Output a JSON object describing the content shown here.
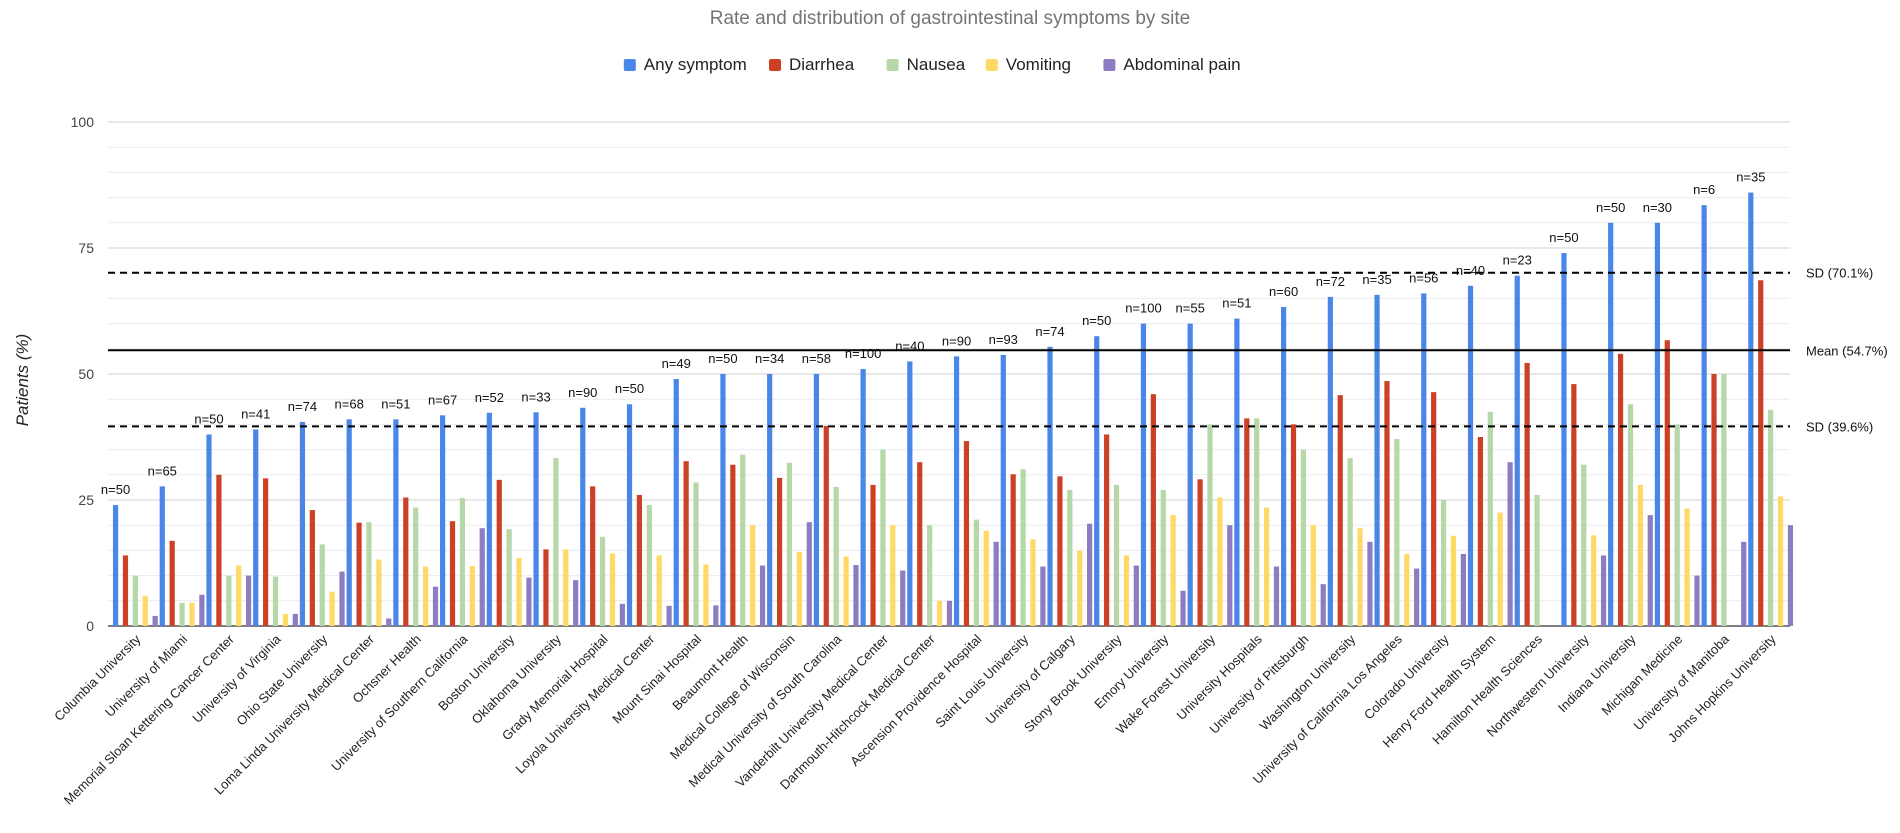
{
  "chart_data": {
    "type": "bar",
    "title": "Rate and distribution of gastrointestinal symptoms by site",
    "ylabel": "Patients (%)",
    "xlabel": "",
    "ylim": [
      0,
      100
    ],
    "yticks": [
      "0",
      "25",
      "50",
      "75",
      "100"
    ],
    "grid": true,
    "legend_position": "top",
    "categories": [
      "Columbia University",
      "University of Miami",
      "Memorial Sloan Kettering Cancer Center",
      "University of Virginia",
      "Ohio State University",
      "Loma Linda University Medical Center",
      "Ochsner Health",
      "University of Southern California",
      "Boston University",
      "Oklahoma University",
      "Grady Memorial Hospital",
      "Loyola University Medical Center",
      "Mount Sinai Hospital",
      "Beaumont Health",
      "Medical College of Wisconsin",
      "Medical University of South Carolina",
      "Vanderbilt University Medical Center",
      "Dartmouth-Hitchcock Medical Center",
      "Ascension Providence Hospital",
      "Saint Louis University",
      "University of Calgary",
      "Stony Brook University",
      "Emory University",
      "Wake Forest University",
      "University Hospitals",
      "University of Pittsburgh",
      "Washington University",
      "University of California Los Angeles",
      "Colorado University",
      "Henry Ford Health System",
      "Hamilton Health Sciences",
      "Northwestern University",
      "Indiana University",
      "Michigan Medicine",
      "University of Manitoba",
      "Johns Hopkins University"
    ],
    "n_labels": [
      "n=50",
      "n=65",
      "n=50",
      "n=41",
      "n=74",
      "n=68",
      "n=51",
      "n=67",
      "n=52",
      "n=33",
      "n=90",
      "n=50",
      "n=49",
      "n=50",
      "n=34",
      "n=58",
      "n=100",
      "n=40",
      "n=90",
      "n=93",
      "n=74",
      "n=50",
      "n=100",
      "n=55",
      "n=51",
      "n=60",
      "n=72",
      "n=35",
      "n=56",
      "n=40",
      "n=23",
      "n=50",
      "n=50",
      "n=30",
      "n=6",
      "n=35"
    ],
    "series": [
      {
        "name": "Any symptom",
        "color": "#4a86e8",
        "values": [
          24,
          27.7,
          38,
          39,
          40.5,
          41,
          41,
          41.8,
          42.3,
          42.4,
          43.3,
          44,
          49,
          50,
          50,
          50,
          51,
          52.5,
          53.5,
          53.8,
          55.4,
          57.5,
          60,
          60,
          61,
          63.3,
          65.3,
          65.7,
          66,
          67.5,
          69.5,
          74,
          80,
          80,
          83.5,
          86
        ]
      },
      {
        "name": "Diarrhea",
        "color": "#cc4125",
        "values": [
          14,
          16.9,
          30,
          29.3,
          23,
          20.5,
          25.5,
          20.8,
          29,
          15.2,
          27.7,
          26,
          32.7,
          32,
          29.4,
          39.7,
          28,
          32.5,
          36.7,
          30.1,
          29.7,
          38,
          46,
          29.1,
          41.2,
          40,
          45.8,
          48.6,
          46.4,
          37.5,
          52.2,
          48,
          54,
          56.7,
          50,
          68.6
        ]
      },
      {
        "name": "Nausea",
        "color": "#b6d7a8",
        "values": [
          10,
          4.6,
          10,
          9.8,
          16.2,
          20.6,
          23.5,
          25.4,
          19.2,
          33.3,
          17.7,
          24,
          28.5,
          34,
          32.4,
          27.6,
          35,
          20,
          21.1,
          31.1,
          27,
          28,
          27,
          40,
          41.2,
          35,
          33.3,
          37.1,
          25,
          42.5,
          26,
          32,
          44,
          40,
          50,
          42.9
        ]
      },
      {
        "name": "Vomiting",
        "color": "#ffd966",
        "values": [
          6,
          4.6,
          12,
          2.4,
          6.8,
          13.2,
          11.8,
          11.9,
          13.5,
          15.2,
          14.4,
          14,
          12.2,
          20,
          14.7,
          13.8,
          20,
          5,
          18.9,
          17.2,
          14.9,
          14,
          22,
          25.5,
          23.5,
          20,
          19.4,
          14.3,
          17.9,
          22.5,
          0,
          18,
          28,
          23.3,
          0,
          25.7
        ]
      },
      {
        "name": "Abdominal pain",
        "color": "#8e7cc3",
        "values": [
          2,
          6.2,
          10,
          2.4,
          10.8,
          1.5,
          7.8,
          19.4,
          9.6,
          9.1,
          4.4,
          4,
          4.1,
          12,
          20.6,
          12.1,
          11,
          5,
          16.7,
          11.8,
          20.3,
          12,
          7,
          20,
          11.8,
          8.3,
          16.7,
          11.4,
          14.3,
          32.5,
          0,
          14,
          22,
          10,
          16.7,
          20
        ]
      }
    ],
    "reference_lines": [
      {
        "label": "SD (70.1%)",
        "value": 70.1,
        "style": "dashed"
      },
      {
        "label": "Mean (54.7%)",
        "value": 54.7,
        "style": "solid"
      },
      {
        "label": "SD (39.6%)",
        "value": 39.6,
        "style": "dashed"
      }
    ]
  }
}
